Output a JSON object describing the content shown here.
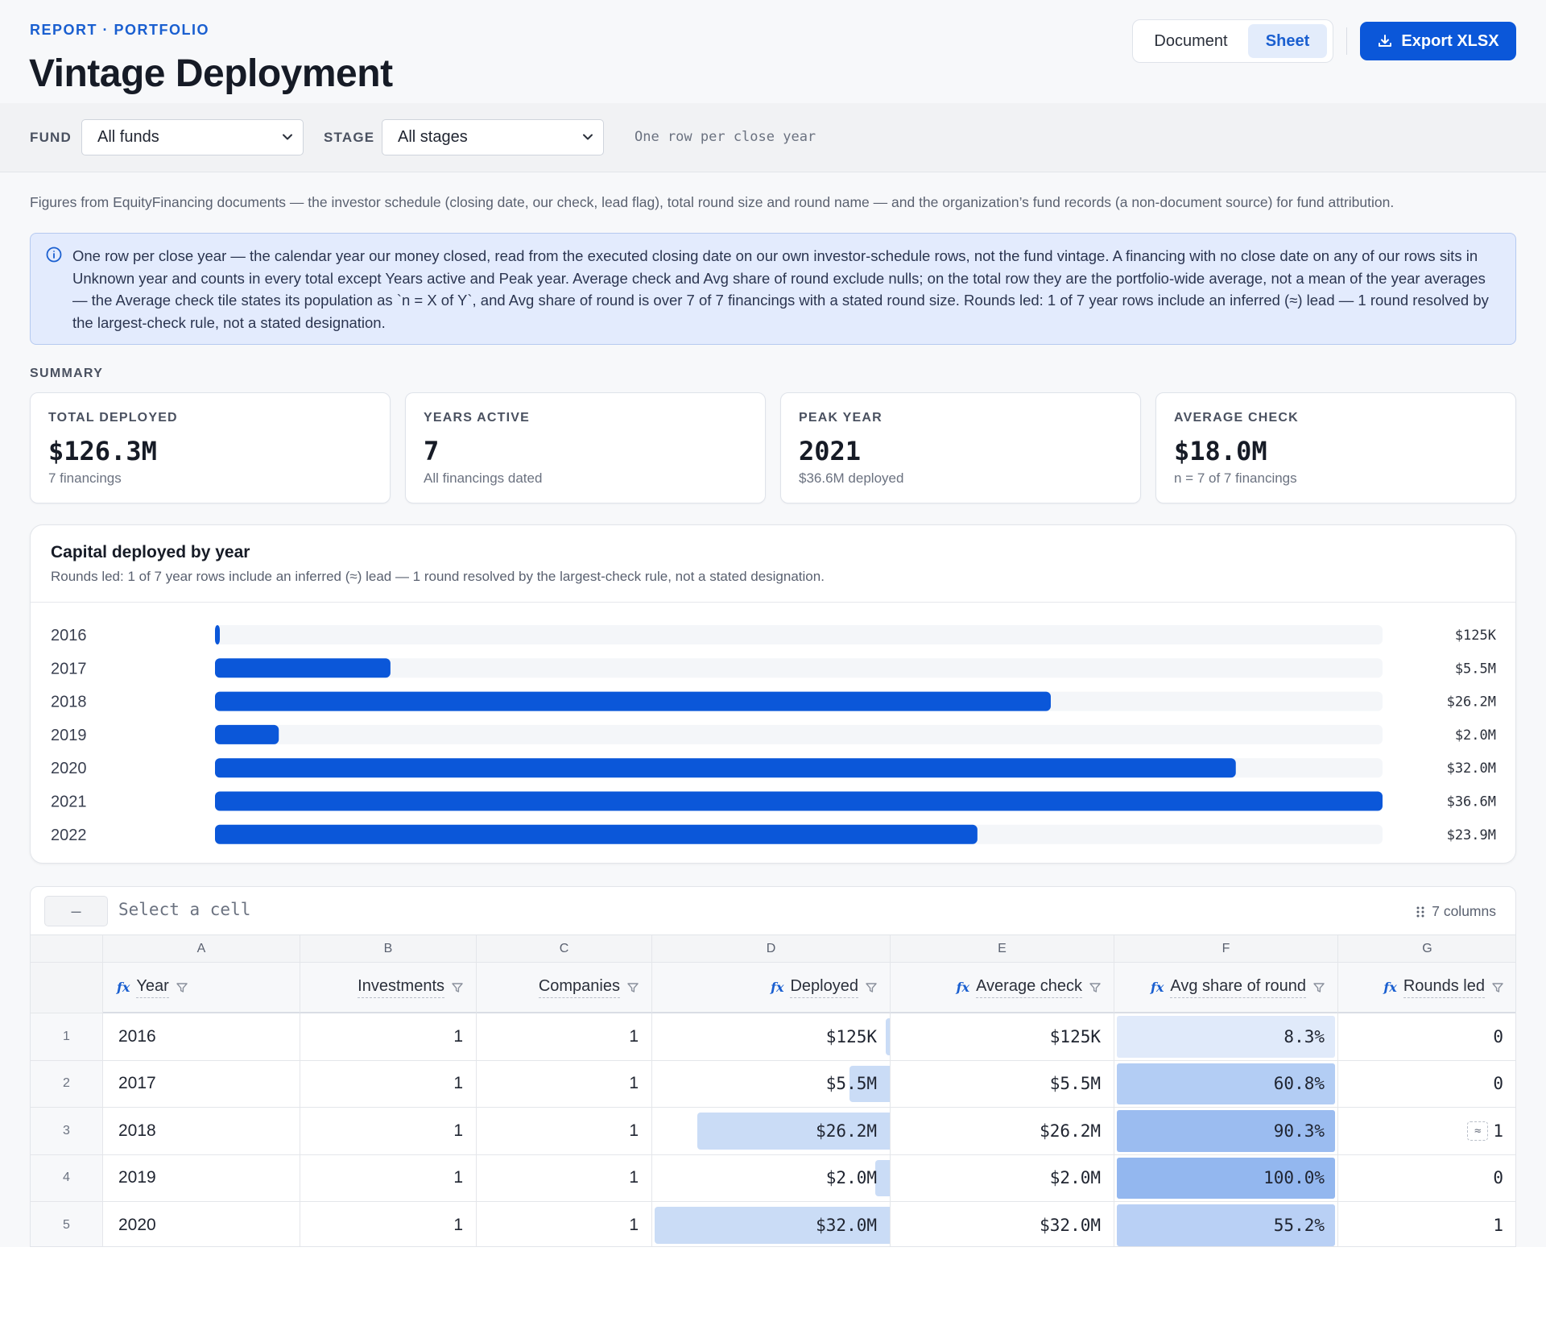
{
  "header": {
    "breadcrumb": "REPORT · PORTFOLIO",
    "title": "Vintage Deployment",
    "view_document": "Document",
    "view_sheet": "Sheet",
    "active_view": "Sheet",
    "export_label": "Export XLSX"
  },
  "filters": {
    "fund_label": "FUND",
    "fund_value": "All funds",
    "stage_label": "STAGE",
    "stage_value": "All stages",
    "note": "One row per close year"
  },
  "description": "Figures from EquityFinancing documents — the investor schedule (closing date, our check, lead flag), total round size and round name — and the organization’s fund records (a non-document source) for fund attribution.",
  "info_note": "One row per close year — the calendar year our money closed, read from the executed closing date on our own investor-schedule rows, not the fund vintage. A financing with no close date on any of our rows sits in Unknown year and counts in every total except Years active and Peak year. Average check and Avg share of round exclude nulls; on the total row they are the portfolio-wide average, not a mean of the year averages — the Average check tile states its population as `n = X of Y`, and Avg share of round is over 7 of 7 financings with a stated round size. Rounds led: 1 of 7 year rows include an inferred (≈) lead — 1 round resolved by the largest-check rule, not a stated designation.",
  "summary": {
    "label": "SUMMARY",
    "cards": [
      {
        "label": "TOTAL DEPLOYED",
        "value": "$126.3M",
        "sub": "7 financings"
      },
      {
        "label": "YEARS ACTIVE",
        "value": "7",
        "sub": "All financings dated"
      },
      {
        "label": "PEAK YEAR",
        "value": "2021",
        "sub": "$36.6M deployed"
      },
      {
        "label": "AVERAGE CHECK",
        "value": "$18.0M",
        "sub": "n = 7 of 7 financings"
      }
    ]
  },
  "chart_data": {
    "type": "bar",
    "orientation": "horizontal",
    "title": "Capital deployed by year",
    "subtitle": "Rounds led: 1 of 7 year rows include an inferred (≈) lead — 1 round resolved by the largest-check rule, not a stated designation.",
    "categories": [
      "2016",
      "2017",
      "2018",
      "2019",
      "2020",
      "2021",
      "2022"
    ],
    "values": [
      0.125,
      5.5,
      26.2,
      2.0,
      32.0,
      36.6,
      23.9
    ],
    "value_labels": [
      "$125K",
      "$5.5M",
      "$26.2M",
      "$2.0M",
      "$32.0M",
      "$36.6M",
      "$23.9M"
    ],
    "xlim": [
      0,
      36.6
    ],
    "bar_color": "#0b57d9",
    "track_color": "#f4f6f9"
  },
  "sheet": {
    "cell_ref": "–",
    "formula_placeholder": "Select a cell",
    "column_count": "7 columns",
    "column_letters": [
      "A",
      "B",
      "C",
      "D",
      "E",
      "F",
      "G"
    ],
    "columns": [
      {
        "label": "Year",
        "fx": true
      },
      {
        "label": "Investments",
        "fx": false
      },
      {
        "label": "Companies",
        "fx": false
      },
      {
        "label": "Deployed",
        "fx": true
      },
      {
        "label": "Average check",
        "fx": true
      },
      {
        "label": "Avg share of round",
        "fx": true
      },
      {
        "label": "Rounds led",
        "fx": true
      }
    ],
    "fx_glyph": "fx",
    "rows": [
      {
        "num": "1",
        "year": "2016",
        "investments": "1",
        "companies": "1",
        "deployed": "$125K",
        "deployed_value": 0.125,
        "avg_check": "$125K",
        "avg_share": "8.3%",
        "avg_share_value": 8.3,
        "led": "0",
        "led_inferred": false
      },
      {
        "num": "2",
        "year": "2017",
        "investments": "1",
        "companies": "1",
        "deployed": "$5.5M",
        "deployed_value": 5.5,
        "avg_check": "$5.5M",
        "avg_share": "60.8%",
        "avg_share_value": 60.8,
        "led": "0",
        "led_inferred": false
      },
      {
        "num": "3",
        "year": "2018",
        "investments": "1",
        "companies": "1",
        "deployed": "$26.2M",
        "deployed_value": 26.2,
        "avg_check": "$26.2M",
        "avg_share": "90.3%",
        "avg_share_value": 90.3,
        "led": "1",
        "led_inferred": true
      },
      {
        "num": "4",
        "year": "2019",
        "investments": "1",
        "companies": "1",
        "deployed": "$2.0M",
        "deployed_value": 2.0,
        "avg_check": "$2.0M",
        "avg_share": "100.0%",
        "avg_share_value": 100.0,
        "led": "0",
        "led_inferred": false
      },
      {
        "num": "5",
        "year": "2020",
        "investments": "1",
        "companies": "1",
        "deployed": "$32.0M",
        "deployed_value": 32.0,
        "avg_check": "$32.0M",
        "avg_share": "55.2%",
        "avg_share_value": 55.2,
        "led": "1",
        "led_inferred": false
      }
    ],
    "approx_glyph": "≈"
  }
}
